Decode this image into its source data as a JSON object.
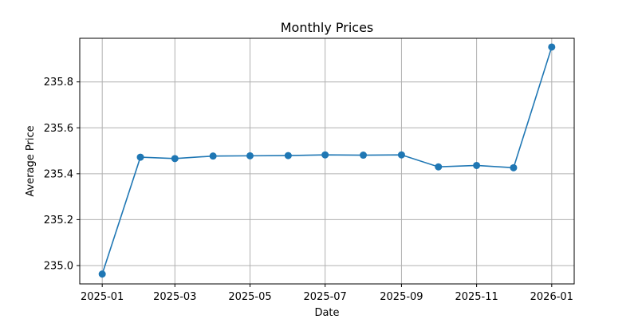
{
  "chart_data": {
    "type": "line",
    "title": "Monthly Prices",
    "xlabel": "Date",
    "ylabel": "Average Price",
    "grid": true,
    "x": [
      "2025-01",
      "2025-02",
      "2025-03",
      "2025-04",
      "2025-05",
      "2025-06",
      "2025-07",
      "2025-08",
      "2025-09",
      "2025-10",
      "2025-11",
      "2025-12",
      "2026-01"
    ],
    "x_tick_labels": [
      "2025-01",
      "2025-03",
      "2025-05",
      "2025-07",
      "2025-09",
      "2025-11",
      "2026-01"
    ],
    "y_tick_labels": [
      "235.0",
      "235.2",
      "235.4",
      "235.6",
      "235.8"
    ],
    "ylim": [
      234.92,
      235.99
    ],
    "series": [
      {
        "values": [
          234.963,
          235.472,
          235.466,
          235.477,
          235.478,
          235.479,
          235.482,
          235.481,
          235.482,
          235.43,
          235.436,
          235.426,
          235.952
        ],
        "color": "#1f77b4",
        "marker": "circle"
      }
    ]
  }
}
